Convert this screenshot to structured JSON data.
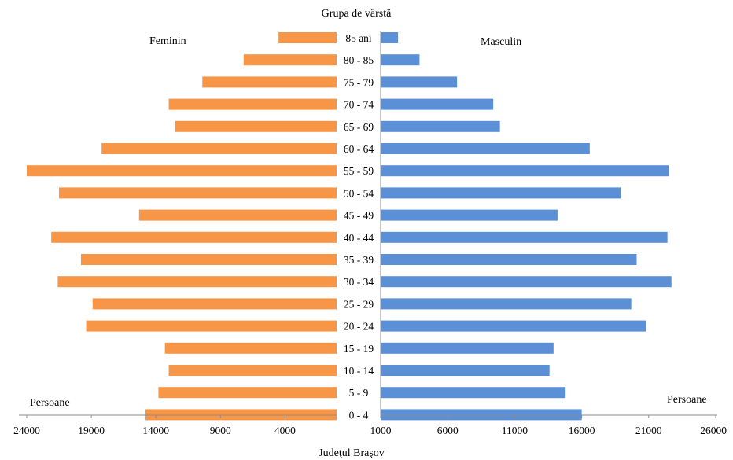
{
  "chart_data": {
    "type": "bar",
    "title": "Grupa  de vârstă",
    "caption": "Judeţul  Braşov",
    "categories": [
      "0 - 4",
      "5 - 9",
      "10 - 14",
      "15 - 19",
      "20 - 24",
      "25 - 29",
      "30 - 34",
      "35 - 39",
      "40 - 44",
      "45 - 49",
      "50 - 54",
      "55 - 59",
      "60 - 64",
      "65 - 69",
      "70 - 74",
      "75 - 79",
      "80 - 85",
      "85 ani"
    ],
    "series": [
      {
        "name": "Feminin",
        "color": "#F79646",
        "values": [
          14800,
          13800,
          13000,
          13300,
          19400,
          18900,
          21600,
          19800,
          22100,
          15300,
          21500,
          24000,
          18200,
          12500,
          13000,
          10400,
          7200,
          4500
        ]
      },
      {
        "name": "Masculin",
        "color": "#5B8FD6",
        "values": [
          16000,
          14800,
          13600,
          13900,
          20800,
          19700,
          22700,
          20100,
          22400,
          14200,
          18900,
          22500,
          16600,
          9900,
          9400,
          6700,
          3900,
          2300
        ]
      }
    ],
    "left_axis": {
      "label": "Persoane",
      "ticks": [
        "24000",
        "19000",
        "14000",
        "9000",
        "4000"
      ],
      "tick_values": [
        24000,
        19000,
        14000,
        9000,
        4000
      ],
      "range": [
        0,
        24000
      ]
    },
    "right_axis": {
      "label": "Persoane",
      "ticks": [
        "1000",
        "6000",
        "11000",
        "16000",
        "21000",
        "26000"
      ],
      "tick_values": [
        1000,
        6000,
        11000,
        16000,
        21000,
        26000
      ],
      "range": [
        1000,
        26000
      ]
    },
    "grid": false
  }
}
